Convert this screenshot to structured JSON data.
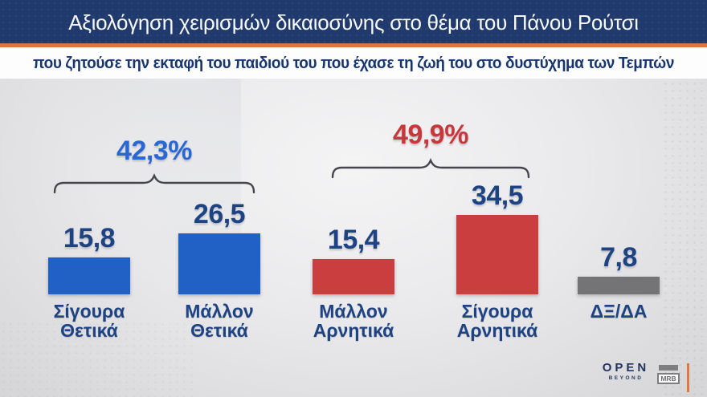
{
  "header": {
    "title": "Αξιολόγηση χειρισμών δικαιοσύνης στο θέμα του Πάνου Ρούτσι",
    "subtitle": "που ζητούσε την εκταφή του παιδιού του που έχασε τη ζωή του στο δυστύχημα των Τεμπών"
  },
  "chart_data": {
    "type": "bar",
    "title": "Αξιολόγηση χειρισμών δικαιοσύνης στο θέμα του Πάνου Ρούτσι",
    "subtitle": "που ζητούσε την εκταφή του παιδιού του που έχασε τη ζωή του στο δυστύχημα των Τεμπών",
    "unit": "%",
    "categories": [
      "Σίγουρα Θετικά",
      "Μάλλον Θετικά",
      "Μάλλον Αρνητικά",
      "Σίγουρα Αρνητικά",
      "ΔΞ/ΔΑ"
    ],
    "category_lines": [
      [
        "Σίγουρα",
        "Θετικά"
      ],
      [
        "Μάλλον",
        "Θετικά"
      ],
      [
        "Μάλλον",
        "Αρνητικά"
      ],
      [
        "Σίγουρα",
        "Αρνητικά"
      ],
      [
        "ΔΞ/ΔΑ"
      ]
    ],
    "values": [
      15.8,
      26.5,
      15.4,
      34.5,
      7.8
    ],
    "value_labels": [
      "15,8",
      "26,5",
      "15,4",
      "34,5",
      "7,8"
    ],
    "bar_colors": [
      "#2161c6",
      "#2161c6",
      "#ca3e40",
      "#ca3e40",
      "#747476"
    ],
    "value_label_color": "#1d4383",
    "groups": [
      {
        "label": "42,3%",
        "color": "#2968d3",
        "bar_indexes": [
          0,
          1
        ]
      },
      {
        "label": "49,9%",
        "color": "#c8373b",
        "bar_indexes": [
          2,
          3
        ]
      }
    ],
    "ylim": [
      0,
      40
    ],
    "grid": false,
    "legend": false
  },
  "footer": {
    "open_logo_text": "OPEN",
    "open_logo_subtext": "BEYOND",
    "mrb_logo_text": "MRB"
  },
  "colors": {
    "header_bg": "#203a6d",
    "header_text": "#f6f8fb",
    "accent_orange": "#dd7440",
    "subtitle_text": "#17356f",
    "background": "#e4e4e6",
    "brace": "#45454d"
  }
}
